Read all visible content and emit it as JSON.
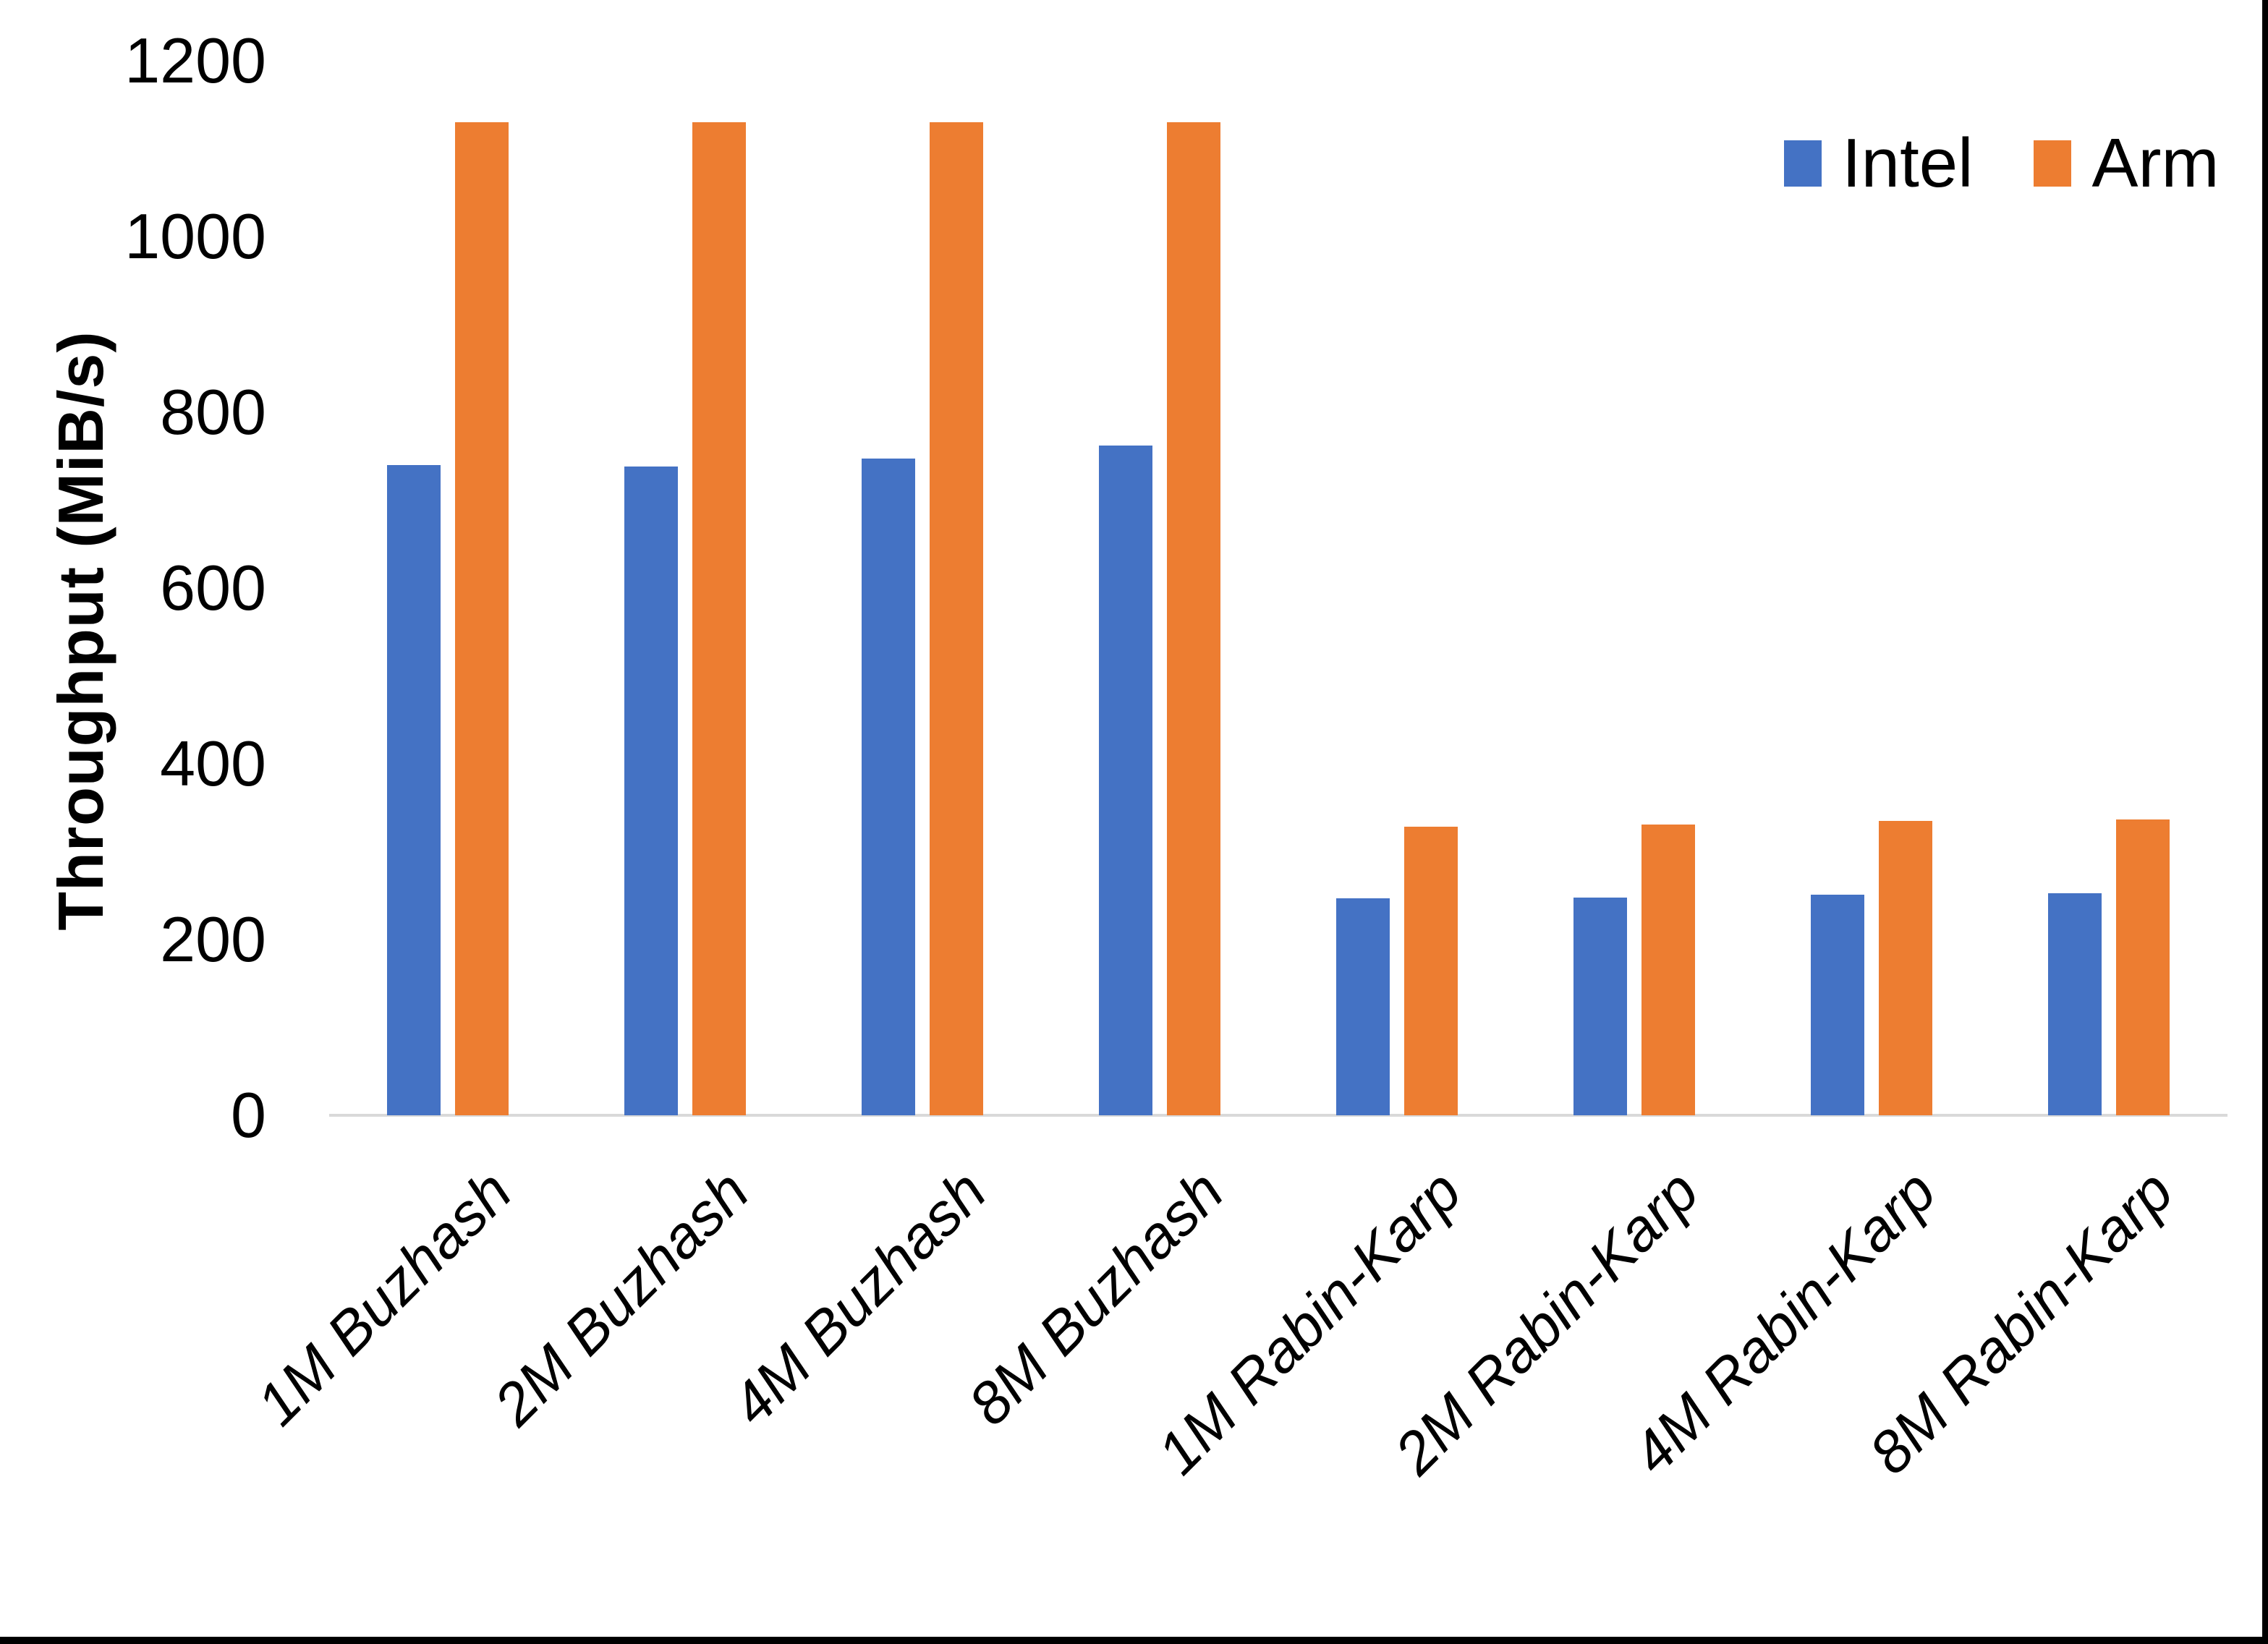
{
  "chart_data": {
    "type": "bar",
    "title": "",
    "categories": [
      "1M Buzhash",
      "2M Buzhash",
      "4M Buzhash",
      "8M Buzhash",
      "1M Rabin-Karp",
      "2M Rabin-Karp",
      "4M Rabin-Karp",
      "8M Rabin-Karp"
    ],
    "series": [
      {
        "name": "Intel",
        "color": "#4472C4",
        "values": [
          740,
          738,
          747,
          762,
          247,
          248,
          251,
          253
        ]
      },
      {
        "name": "Arm",
        "color": "#ED7D31",
        "values": [
          1130,
          1130,
          1130,
          1130,
          328,
          331,
          335,
          337
        ]
      }
    ],
    "xlabel": "",
    "ylabel": "Throughput (MiB/s)",
    "ylim": [
      0,
      1200
    ],
    "yticks": [
      0,
      200,
      400,
      600,
      800,
      1000,
      1200
    ],
    "grid": false,
    "legend_position": "top-right",
    "baseline_color": "#D9D9D9"
  }
}
